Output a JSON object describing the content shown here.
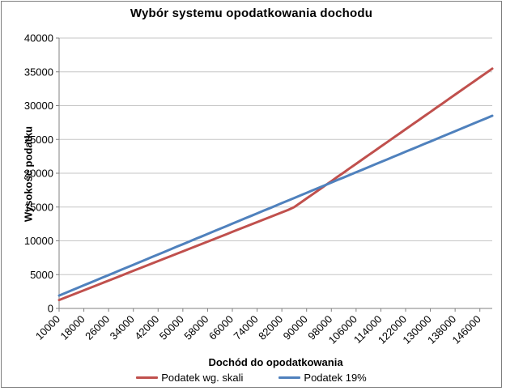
{
  "chart_data": {
    "type": "line",
    "title": "Wybór systemu opodatkowania dochodu",
    "xlabel": "Dochód do opodatkowania",
    "ylabel": "Wysokość podatku",
    "ylim": [
      0,
      40000
    ],
    "y_ticks": [
      0,
      5000,
      10000,
      15000,
      20000,
      25000,
      30000,
      35000,
      40000
    ],
    "grid": true,
    "legend_position": "bottom",
    "x": [
      10000,
      12000,
      14000,
      16000,
      18000,
      20000,
      22000,
      24000,
      26000,
      28000,
      30000,
      32000,
      34000,
      36000,
      38000,
      40000,
      42000,
      44000,
      46000,
      48000,
      50000,
      52000,
      54000,
      56000,
      58000,
      60000,
      62000,
      64000,
      66000,
      68000,
      70000,
      72000,
      74000,
      76000,
      78000,
      80000,
      82000,
      84000,
      86000,
      88000,
      90000,
      92000,
      94000,
      96000,
      98000,
      100000,
      102000,
      104000,
      106000,
      108000,
      110000,
      112000,
      114000,
      116000,
      118000,
      120000,
      122000,
      124000,
      126000,
      128000,
      130000,
      132000,
      134000,
      136000,
      138000,
      140000,
      142000,
      144000,
      146000,
      148000,
      150000
    ],
    "x_tick_labels": [
      "10000",
      "18000",
      "26000",
      "34000",
      "42000",
      "50000",
      "58000",
      "66000",
      "74000",
      "82000",
      "90000",
      "98000",
      "106000",
      "114000",
      "122000",
      "130000",
      "138000",
      "146000"
    ],
    "x_label_every_n_points": 4,
    "series": [
      {
        "name": "Podatek wg. skali",
        "color": "#C0504D",
        "values": [
          1243.98,
          1603.98,
          1963.98,
          2323.98,
          2683.98,
          3043.98,
          3403.98,
          3763.98,
          4123.98,
          4483.98,
          4843.98,
          5203.98,
          5563.98,
          5923.98,
          6283.98,
          6643.98,
          7003.98,
          7363.98,
          7723.98,
          8083.98,
          8443.98,
          8803.98,
          9163.98,
          9523.98,
          9883.98,
          10243.98,
          10603.98,
          10963.98,
          11323.98,
          11683.98,
          12043.98,
          12403.98,
          12763.98,
          13123.98,
          13483.98,
          13843.98,
          14203.98,
          14563.98,
          14990.06,
          15630.06,
          16270.06,
          16910.06,
          17550.06,
          18190.06,
          18830.06,
          19470.06,
          20110.06,
          20750.06,
          21390.06,
          22030.06,
          22670.06,
          23310.06,
          23950.06,
          24590.06,
          25230.06,
          25870.06,
          26510.06,
          27150.06,
          27790.06,
          28430.06,
          29070.06,
          29710.06,
          30350.06,
          30990.06,
          31630.06,
          32270.06,
          32910.06,
          33550.06,
          34190.06,
          34830.06,
          35470.06
        ]
      },
      {
        "name": "Podatek 19%",
        "color": "#4F81BD",
        "values": [
          1900,
          2280,
          2660,
          3040,
          3420,
          3800,
          4180,
          4560,
          4940,
          5320,
          5700,
          6080,
          6460,
          6840,
          7220,
          7600,
          7980,
          8360,
          8740,
          9120,
          9500,
          9880,
          10260,
          10640,
          11020,
          11400,
          11780,
          12160,
          12540,
          12920,
          13300,
          13680,
          14060,
          14440,
          14820,
          15200,
          15580,
          15960,
          16340,
          16720,
          17100,
          17480,
          17860,
          18240,
          18620,
          19000,
          19380,
          19760,
          20140,
          20520,
          20900,
          21280,
          21660,
          22040,
          22420,
          22800,
          23180,
          23560,
          23940,
          24320,
          24700,
          25080,
          25460,
          25840,
          26220,
          26600,
          26980,
          27360,
          27740,
          28120,
          28500
        ]
      }
    ],
    "style": {
      "gridline_color": "#C6C6C6",
      "axis_color": "#808080",
      "text_color": "#000000",
      "background": "#ffffff"
    }
  }
}
